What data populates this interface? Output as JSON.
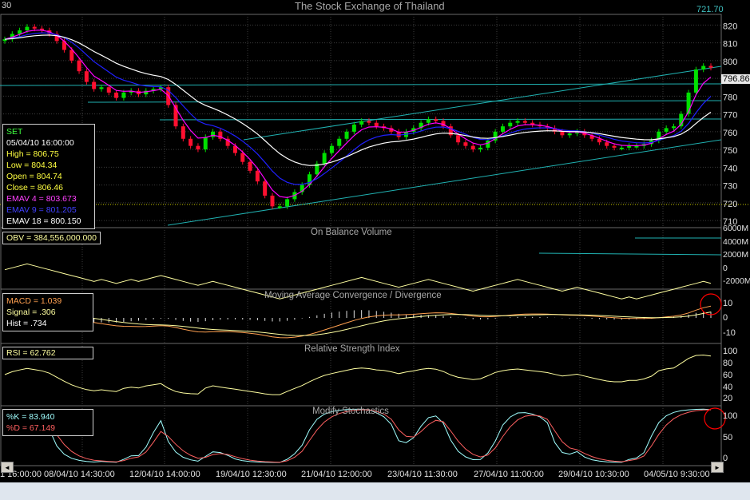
{
  "header": {
    "period": "30",
    "title": "The Stock Exchange of Thailand",
    "extra_value": "721.70"
  },
  "colors": {
    "up_candle": "#00e000",
    "down_candle": "#ff1030",
    "ema4": "#ff00ff",
    "ema9": "#2020ff",
    "ema18": "#ffffff",
    "trendline": "#20b2b2",
    "obv": "#ffffa0",
    "macd": "#ffa050",
    "signal": "#ffffa0",
    "rsi": "#ffffa0",
    "stoch_k": "#a0ffff",
    "stoch_d": "#ff6060",
    "highlight_circle": "#ff0000"
  },
  "price_panel": {
    "info": {
      "symbol": "SET",
      "datetime": "05/04/10 16:00:00",
      "high": "High  = 806.75",
      "low": "Low   = 804.34",
      "open": "Open  = 804.74",
      "close": "Close = 806.46",
      "ema4": "EMAV 4 = 803.673",
      "ema9": "EMAV 9 = 801.205",
      "ema18": "EMAV 18 = 800.150"
    },
    "last_price": "796.86",
    "axis_labels": [
      "820",
      "810",
      "800",
      "790",
      "780",
      "770",
      "760",
      "750",
      "740",
      "730",
      "720",
      "710"
    ]
  },
  "obv_panel": {
    "title": "On Balance Volume",
    "info": "OBV = 384,556,000.000",
    "axis_labels": [
      "6000M",
      "4000M",
      "2000M",
      "0",
      "-2000M"
    ]
  },
  "macd_panel": {
    "title": "Moving Average Convergence / Divergence",
    "macd": "MACD = 1.039",
    "signal": "Signal = .306",
    "hist": "Hist = .734",
    "axis_labels": [
      "10",
      "0",
      "-10"
    ]
  },
  "rsi_panel": {
    "title": "Relative Strength Index",
    "info": "RSI = 62.762",
    "axis_labels": [
      "100",
      "80",
      "60",
      "40",
      "20"
    ]
  },
  "stoch_panel": {
    "title": "Modify Stochastics",
    "k": "%K = 83.940",
    "d": "%D = 67.149",
    "axis_labels": [
      "100",
      "50",
      "0"
    ]
  },
  "x_axis": {
    "labels": [
      "1 16:00:00",
      "08/04/10 14:30:00",
      "12/04/10 14:00:00",
      "19/04/10 12:30:00",
      "21/04/10 12:00:00",
      "23/04/10 11:30:00",
      "27/04/10 11:00:00",
      "29/04/10 10:30:00",
      "04/05/10 9:30:00"
    ]
  },
  "chart_data": {
    "type": "candlestick",
    "title": "The Stock Exchange of Thailand",
    "x_tick_labels": [
      "1 16:00:00",
      "08/04/10 14:30:00",
      "12/04/10 14:00:00",
      "19/04/10 12:30:00",
      "21/04/10 12:00:00",
      "23/04/10 11:30:00",
      "27/04/10 11:00:00",
      "29/04/10 10:30:00",
      "04/05/10 9:30:00"
    ],
    "ylim": [
      706,
      826
    ],
    "close_series": [
      812,
      815,
      817,
      819,
      818,
      817,
      815,
      811,
      806,
      800,
      794,
      788,
      784,
      785,
      782,
      779,
      782,
      783,
      781,
      783,
      784,
      785,
      775,
      763,
      756,
      752,
      750,
      757,
      760,
      756,
      752,
      748,
      743,
      738,
      732,
      724,
      718,
      718,
      722,
      726,
      730,
      736,
      742,
      748,
      752,
      756,
      760,
      764,
      766,
      765,
      763,
      762,
      760,
      757,
      760,
      762,
      765,
      767,
      766,
      763,
      758,
      754,
      752,
      750,
      751,
      755,
      760,
      763,
      765,
      766,
      765,
      764,
      763,
      762,
      760,
      758,
      759,
      760,
      758,
      756,
      754,
      752,
      751,
      751,
      752,
      752,
      753,
      755,
      760,
      762,
      763,
      770,
      782,
      795,
      797,
      796
    ]
  },
  "scroll": {
    "left": "◄",
    "right": "►"
  }
}
